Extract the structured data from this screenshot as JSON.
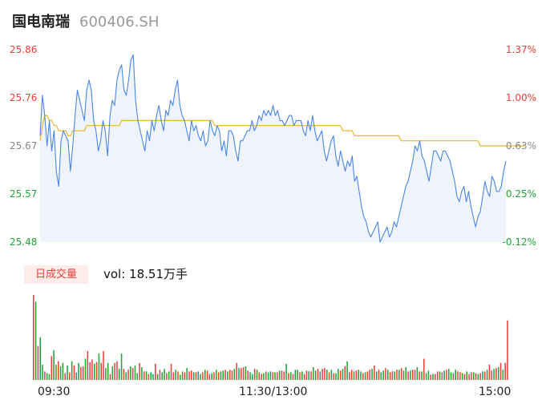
{
  "header": {
    "name": "国电南瑞",
    "code": "600406.SH"
  },
  "colors": {
    "up": "#e8413b",
    "down": "#21a33a",
    "neutral": "#888888",
    "price_line": "#4a86e8",
    "avg_line": "#f0b429",
    "area_fill": "#eef3fc"
  },
  "y_left_labels": [
    "25.86",
    "25.76",
    "25.67",
    "25.57",
    "25.48"
  ],
  "y_right_labels": [
    "1.37%",
    "1.00%",
    "0.63%",
    "0.25%",
    "-0.12%"
  ],
  "volume": {
    "tag": "日成交量",
    "text": "vol: 18.51万手"
  },
  "x_labels": [
    "09:30",
    "11:30/13:00",
    "15:00"
  ],
  "chart_data": [
    {
      "type": "line",
      "ylim": [
        25.48,
        25.86
      ],
      "x_ticks": [
        "09:30",
        "11:30/13:00",
        "15:00"
      ],
      "series": [
        {
          "values": [
            25.69,
            25.77,
            25.73,
            25.67,
            25.72,
            25.66,
            25.7,
            25.62,
            25.59,
            25.68,
            25.7,
            25.69,
            25.68,
            25.62,
            25.67,
            25.73,
            25.78,
            25.76,
            25.74,
            25.72,
            25.78,
            25.8,
            25.78,
            25.72,
            25.7,
            25.66,
            25.68,
            25.72,
            25.7,
            25.65,
            25.73,
            25.76,
            25.75,
            25.8,
            25.82,
            25.83,
            25.78,
            25.77,
            25.8,
            25.84,
            25.85,
            25.76,
            25.72,
            25.7,
            25.68,
            25.66,
            25.7,
            25.68,
            25.72,
            25.7,
            25.73,
            25.75,
            25.72,
            25.7,
            25.74,
            25.73,
            25.76,
            25.75,
            25.78,
            25.8,
            25.75,
            25.73,
            25.72,
            25.7,
            25.68,
            25.72,
            25.7,
            25.71,
            25.69,
            25.68,
            25.7,
            25.67,
            25.68,
            25.72,
            25.7,
            25.69,
            25.71,
            25.7,
            25.66,
            25.68,
            25.65,
            25.7,
            25.7,
            25.69,
            25.66,
            25.64,
            25.68,
            25.68,
            25.69,
            25.7,
            25.7,
            25.72,
            25.7,
            25.71,
            25.73,
            25.72,
            25.74,
            25.73,
            25.74,
            25.73,
            25.75,
            25.73,
            25.74,
            25.72,
            25.72,
            25.71,
            25.72,
            25.73,
            25.73,
            25.71,
            25.72,
            25.72,
            25.72,
            25.7,
            25.69,
            25.72,
            25.7,
            25.73,
            25.7,
            25.68,
            25.69,
            25.7,
            25.66,
            25.64,
            25.66,
            25.68,
            25.69,
            25.65,
            25.63,
            25.66,
            25.64,
            25.62,
            25.64,
            25.63,
            25.65,
            25.6,
            25.61,
            25.58,
            25.55,
            25.53,
            25.52,
            25.5,
            25.49,
            25.5,
            25.51,
            25.52,
            25.48,
            25.49,
            25.5,
            25.51,
            25.49,
            25.5,
            25.52,
            25.51,
            25.53,
            25.55,
            25.57,
            25.59,
            25.6,
            25.62,
            25.64,
            25.67,
            25.66,
            25.68,
            25.65,
            25.64,
            25.62,
            25.6,
            25.63,
            25.66,
            25.66,
            25.65,
            25.64,
            25.66,
            25.66,
            25.65,
            25.64,
            25.62,
            25.6,
            25.57,
            25.56,
            25.58,
            25.59,
            25.56,
            25.58,
            25.55,
            25.53,
            25.51,
            25.53,
            25.54,
            25.57,
            25.6,
            25.58,
            25.57,
            25.61,
            25.6,
            25.58,
            25.58,
            25.59,
            25.62,
            25.64
          ]
        },
        {
          "values": [
            25.68,
            25.71,
            25.73,
            25.73,
            25.72,
            25.72,
            25.71,
            25.71,
            25.7,
            25.7,
            25.7,
            25.7,
            25.69,
            25.69,
            25.7,
            25.7,
            25.7,
            25.7,
            25.7,
            25.7,
            25.71,
            25.71,
            25.71,
            25.71,
            25.71,
            25.71,
            25.71,
            25.71,
            25.71,
            25.71,
            25.71,
            25.71,
            25.71,
            25.71,
            25.71,
            25.72,
            25.72,
            25.72,
            25.72,
            25.72,
            25.72,
            25.72,
            25.72,
            25.72,
            25.72,
            25.72,
            25.72,
            25.72,
            25.72,
            25.72,
            25.72,
            25.72,
            25.72,
            25.72,
            25.72,
            25.72,
            25.72,
            25.72,
            25.72,
            25.72,
            25.72,
            25.72,
            25.72,
            25.72,
            25.72,
            25.72,
            25.72,
            25.72,
            25.72,
            25.72,
            25.72,
            25.72,
            25.72,
            25.72,
            25.72,
            25.71,
            25.71,
            25.71,
            25.71,
            25.71,
            25.71,
            25.71,
            25.71,
            25.71,
            25.71,
            25.71,
            25.71,
            25.71,
            25.71,
            25.71,
            25.71,
            25.71,
            25.71,
            25.71,
            25.71,
            25.71,
            25.71,
            25.71,
            25.71,
            25.71,
            25.71,
            25.71,
            25.71,
            25.71,
            25.71,
            25.71,
            25.71,
            25.71,
            25.71,
            25.71,
            25.71,
            25.71,
            25.71,
            25.71,
            25.71,
            25.71,
            25.71,
            25.71,
            25.71,
            25.71,
            25.71,
            25.71,
            25.71,
            25.71,
            25.71,
            25.71,
            25.71,
            25.71,
            25.71,
            25.71,
            25.7,
            25.7,
            25.7,
            25.7,
            25.7,
            25.69,
            25.69,
            25.69,
            25.69,
            25.69,
            25.69,
            25.69,
            25.69,
            25.69,
            25.69,
            25.69,
            25.69,
            25.69,
            25.69,
            25.69,
            25.69,
            25.69,
            25.69,
            25.69,
            25.69,
            25.68,
            25.68,
            25.68,
            25.68,
            25.68,
            25.68,
            25.68,
            25.68,
            25.68,
            25.68,
            25.68,
            25.68,
            25.68,
            25.68,
            25.68,
            25.68,
            25.68,
            25.68,
            25.68,
            25.68,
            25.68,
            25.68,
            25.68,
            25.68,
            25.68,
            25.68,
            25.68,
            25.68,
            25.68,
            25.68,
            25.68,
            25.68,
            25.68,
            25.68,
            25.67,
            25.67,
            25.67,
            25.67,
            25.67,
            25.67,
            25.67,
            25.67,
            25.67,
            25.67,
            25.67,
            25.67,
            25.67,
            25.67,
            25.67,
            25.67,
            25.67,
            25.67,
            25.67,
            25.67
          ]
        }
      ]
    },
    {
      "type": "bar",
      "values": [
        100,
        92,
        40,
        50,
        18,
        10,
        8,
        7,
        28,
        35,
        18,
        22,
        16,
        20,
        8,
        17,
        9,
        22,
        17,
        9,
        20,
        15,
        16,
        25,
        34,
        21,
        24,
        19,
        21,
        31,
        20,
        34,
        14,
        20,
        7,
        16,
        20,
        22,
        13,
        31,
        13,
        9,
        12,
        16,
        14,
        17,
        8,
        20,
        15,
        10,
        10,
        7,
        9,
        7,
        19,
        7,
        12,
        9,
        13,
        8,
        10,
        19,
        9,
        12,
        10,
        6,
        10,
        9,
        14,
        10,
        11,
        9,
        9,
        10,
        7,
        9,
        12,
        11,
        7,
        8,
        9,
        12,
        9,
        10,
        11,
        12,
        10,
        12,
        11,
        13,
        20,
        14,
        14,
        15,
        16,
        11,
        9,
        7,
        13,
        12,
        9,
        7,
        8,
        10,
        9,
        10,
        9,
        9,
        9,
        11,
        11,
        10,
        19,
        8,
        9,
        7,
        12,
        12,
        9,
        10,
        7,
        11,
        10,
        10,
        15,
        11,
        13,
        10,
        13,
        14,
        12,
        9,
        12,
        8,
        8,
        13,
        11,
        13,
        16,
        22,
        9,
        12,
        10,
        11,
        12,
        10,
        8,
        9,
        10,
        12,
        13,
        17,
        10,
        12,
        9,
        11,
        14,
        12,
        9,
        10,
        10,
        12,
        12,
        14,
        11,
        15,
        10,
        11,
        12,
        12,
        15,
        10,
        10,
        25,
        8,
        11,
        6,
        7,
        7,
        10,
        10,
        9,
        11,
        12,
        13,
        9,
        8,
        12,
        10,
        9,
        8,
        7,
        10,
        7,
        9,
        9,
        8,
        7,
        8,
        10,
        10,
        12,
        18,
        11,
        13,
        14,
        15,
        20,
        12,
        20,
        70
      ],
      "directions": [
        "u",
        "d",
        "u",
        "d",
        "d",
        "u",
        "d",
        "d",
        "u",
        "d",
        "d",
        "u",
        "d",
        "d",
        "u",
        "d",
        "u",
        "d",
        "u",
        "d",
        "d",
        "u",
        "u",
        "d",
        "u",
        "u",
        "u",
        "d",
        "u",
        "d",
        "u",
        "u",
        "d",
        "d",
        "u",
        "d",
        "u",
        "u",
        "d",
        "d",
        "u",
        "d",
        "u",
        "d",
        "u",
        "d",
        "d",
        "u",
        "d",
        "u",
        "d",
        "u",
        "d",
        "d",
        "u",
        "d",
        "u",
        "d",
        "d",
        "u",
        "d",
        "u",
        "u",
        "d",
        "u",
        "d",
        "d",
        "u",
        "d",
        "u",
        "u",
        "d",
        "u",
        "d",
        "d",
        "u",
        "d",
        "u",
        "u",
        "d",
        "u",
        "d",
        "u",
        "d",
        "d",
        "u",
        "d",
        "u",
        "u",
        "d",
        "u",
        "d",
        "u",
        "u",
        "d",
        "u",
        "d",
        "d",
        "u",
        "d",
        "u",
        "u",
        "d",
        "u",
        "d",
        "d",
        "u",
        "d",
        "u",
        "d",
        "u",
        "u",
        "d",
        "u",
        "d",
        "u",
        "d",
        "d",
        "u",
        "d",
        "u",
        "u",
        "d",
        "u",
        "d",
        "d",
        "u",
        "d",
        "u",
        "u",
        "d",
        "u",
        "d",
        "u",
        "d",
        "d",
        "u",
        "d",
        "u",
        "d",
        "u",
        "u",
        "d",
        "u",
        "d",
        "d",
        "u",
        "d",
        "u",
        "u",
        "d",
        "u",
        "d",
        "u",
        "d",
        "d",
        "u",
        "d",
        "u",
        "u",
        "d",
        "u",
        "d",
        "u",
        "d",
        "d",
        "u",
        "d",
        "u",
        "u",
        "d",
        "u",
        "d",
        "u",
        "d",
        "d",
        "u",
        "d",
        "u",
        "u",
        "d",
        "u",
        "d",
        "u",
        "d",
        "d",
        "u",
        "d",
        "u",
        "u",
        "d",
        "u",
        "d",
        "u",
        "u",
        "d",
        "u",
        "d",
        "u",
        "d",
        "u",
        "d",
        "u",
        "u",
        "d",
        "u",
        "d",
        "u",
        "d",
        "u",
        "u",
        "n"
      ]
    }
  ]
}
